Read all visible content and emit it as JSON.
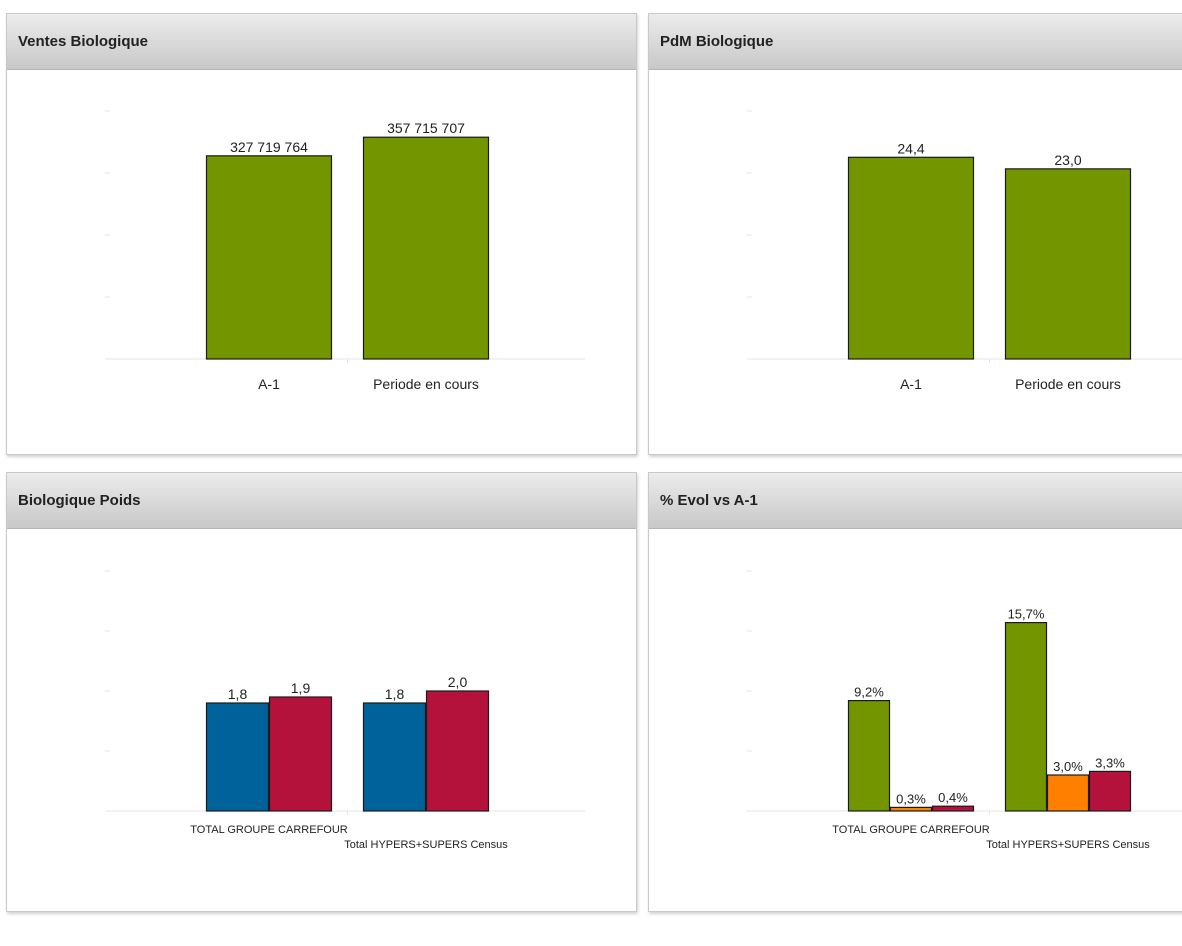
{
  "panels": [
    {
      "id": "p1",
      "title": "Ventes Biologique",
      "chart_data": {
        "type": "bar",
        "categories": [
          "A-1",
          "Periode en cours"
        ],
        "series": [
          {
            "color": "#739600",
            "values": [
              327719764,
              357715707
            ]
          }
        ],
        "labels": [
          [
            "327 719 764",
            "357 715 707"
          ]
        ],
        "ylim": [
          0,
          400000000
        ],
        "grid": false
      }
    },
    {
      "id": "p2",
      "title": "PdM Biologique",
      "chart_data": {
        "type": "bar",
        "categories": [
          "A-1",
          "Periode en cours"
        ],
        "series": [
          {
            "color": "#739600",
            "values": [
              24.4,
              23.0
            ]
          }
        ],
        "labels": [
          [
            "24,4",
            "23,0"
          ]
        ],
        "ylim": [
          0,
          30
        ],
        "grid": false
      }
    },
    {
      "id": "p3",
      "title": "Biologique Poids",
      "chart_data": {
        "type": "bar",
        "categories": [
          "TOTAL GROUPE CARREFOUR",
          "Total HYPERS+SUPERS Census"
        ],
        "series": [
          {
            "color": "#00629b",
            "values": [
              1.8,
              1.8
            ]
          },
          {
            "color": "#b5123b",
            "values": [
              1.9,
              2.0
            ]
          }
        ],
        "labels": [
          [
            "1,8",
            "1,8"
          ],
          [
            "1,9",
            "2,0"
          ]
        ],
        "ylim": [
          0,
          4
        ],
        "grid": false
      }
    },
    {
      "id": "p4",
      "title": "% Evol vs A-1",
      "chart_data": {
        "type": "bar",
        "categories": [
          "TOTAL GROUPE CARREFOUR",
          "Total HYPERS+SUPERS Census"
        ],
        "series": [
          {
            "color": "#739600",
            "values": [
              9.2,
              15.7
            ]
          },
          {
            "color": "#ff7f00",
            "values": [
              0.3,
              3.0
            ]
          },
          {
            "color": "#b5123b",
            "values": [
              0.4,
              3.3
            ]
          }
        ],
        "labels": [
          [
            "9,2%",
            "15,7%"
          ],
          [
            "0,3%",
            "3,0%"
          ],
          [
            "0,4%",
            "3,3%"
          ]
        ],
        "ylim": [
          0,
          20
        ],
        "grid": false
      }
    }
  ]
}
